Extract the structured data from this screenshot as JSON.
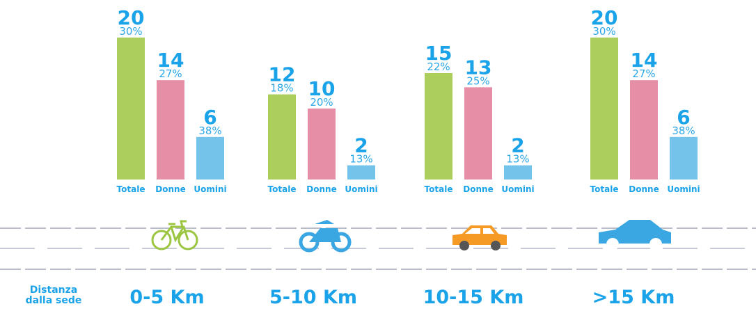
{
  "axis_label": "Distanza dalla sede",
  "chart_data": [
    {
      "type": "bar",
      "title": "0-5 Km",
      "categories": [
        "Totale",
        "Donne",
        "Uomini"
      ],
      "values": [
        20,
        14,
        6
      ],
      "share_labels": [
        "30%",
        "27%",
        "38%"
      ],
      "colors": [
        "#9cc641",
        "#e07a96",
        "#5ab8e6"
      ]
    },
    {
      "type": "bar",
      "title": "5-10 Km",
      "categories": [
        "Totale",
        "Donne",
        "Uomini"
      ],
      "values": [
        12,
        10,
        2
      ],
      "share_labels": [
        "18%",
        "20%",
        "13%"
      ],
      "colors": [
        "#9cc641",
        "#e07a96",
        "#5ab8e6"
      ]
    },
    {
      "type": "bar",
      "title": "10-15 Km",
      "categories": [
        "Totale",
        "Donne",
        "Uomini"
      ],
      "values": [
        15,
        13,
        2
      ],
      "share_labels": [
        "22%",
        "25%",
        "13%"
      ],
      "colors": [
        "#9cc641",
        "#e07a96",
        "#5ab8e6"
      ]
    },
    {
      "type": "bar",
      "title": ">15 Km",
      "categories": [
        "Totale",
        "Donne",
        "Uomini"
      ],
      "values": [
        20,
        14,
        6
      ],
      "share_labels": [
        "30%",
        "27%",
        "38%"
      ],
      "colors": [
        "#9cc641",
        "#e07a96",
        "#5ab8e6"
      ]
    }
  ]
}
